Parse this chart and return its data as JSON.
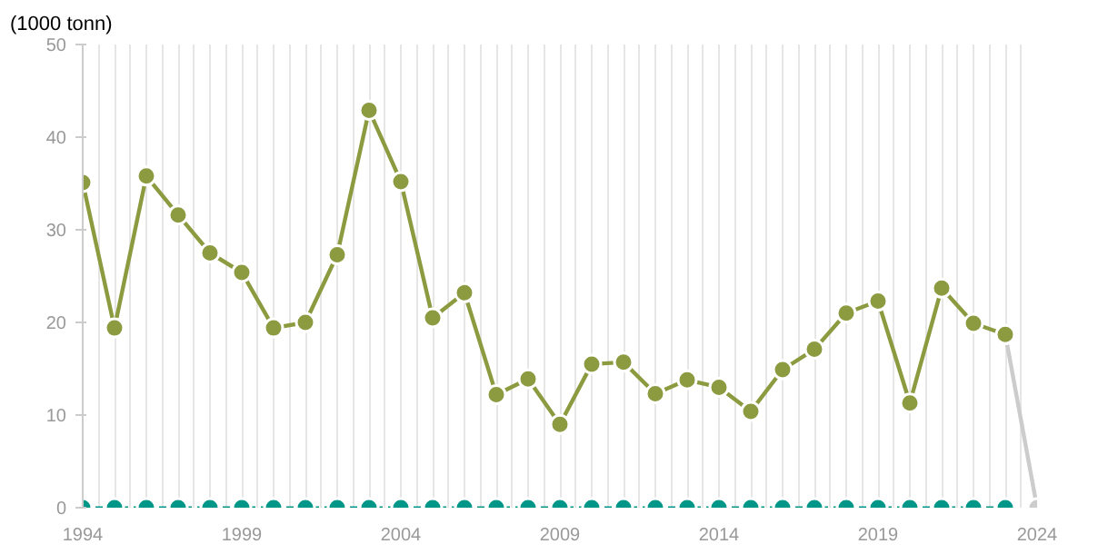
{
  "chart_data": {
    "type": "line",
    "ylabel": "(1000 tonn)",
    "x": [
      1994,
      1995,
      1996,
      1997,
      1998,
      1999,
      2000,
      2001,
      2002,
      2003,
      2004,
      2005,
      2006,
      2007,
      2008,
      2009,
      2010,
      2011,
      2012,
      2013,
      2014,
      2015,
      2016,
      2017,
      2018,
      2019,
      2020,
      2021,
      2022,
      2023
    ],
    "series": [
      {
        "color": "#cccccc",
        "x": [
          2023,
          2024
        ],
        "values": [
          18.7,
          0
        ]
      },
      {
        "color": "#8c9a40",
        "values": [
          35.1,
          19.4,
          35.8,
          31.6,
          27.5,
          25.4,
          19.4,
          20.0,
          27.3,
          42.9,
          35.2,
          20.5,
          23.2,
          12.2,
          13.9,
          9.0,
          15.5,
          15.7,
          12.3,
          13.8,
          13.0,
          10.4,
          14.9,
          17.1,
          21.0,
          22.3,
          11.3,
          23.7,
          19.9,
          18.7
        ]
      },
      {
        "color": "#009688",
        "line_style": "dashed",
        "values": [
          0,
          0,
          0,
          0,
          0,
          0,
          0,
          0,
          0,
          0,
          0,
          0,
          0,
          0,
          0,
          0,
          0,
          0,
          0,
          0,
          0,
          0,
          0,
          0,
          0,
          0,
          0,
          0,
          0,
          0
        ]
      }
    ],
    "xlim": [
      1994,
      2024
    ],
    "xticks": [
      1994,
      {
        "value": 1994.5,
        "label": null
      },
      {
        "value": 1995,
        "label": null
      },
      {
        "value": 1995.5,
        "label": null
      },
      {
        "value": 1996,
        "label": null
      },
      {
        "value": 1996.5,
        "label": null
      },
      {
        "value": 1997,
        "label": null
      },
      {
        "value": 1997.5,
        "label": null
      },
      {
        "value": 1998,
        "label": null
      },
      {
        "value": 1998.5,
        "label": null
      },
      1999,
      {
        "value": 1999.5,
        "label": null
      },
      {
        "value": 2000,
        "label": null
      },
      {
        "value": 2000.5,
        "label": null
      },
      {
        "value": 2001,
        "label": null
      },
      {
        "value": 2001.5,
        "label": null
      },
      {
        "value": 2002,
        "label": null
      },
      {
        "value": 2002.5,
        "label": null
      },
      {
        "value": 2003,
        "label": null
      },
      {
        "value": 2003.5,
        "label": null
      },
      2004,
      {
        "value": 2004.5,
        "label": null
      },
      {
        "value": 2005,
        "label": null
      },
      {
        "value": 2005.5,
        "label": null
      },
      {
        "value": 2006,
        "label": null
      },
      {
        "value": 2006.5,
        "label": null
      },
      {
        "value": 2007,
        "label": null
      },
      {
        "value": 2007.5,
        "label": null
      },
      {
        "value": 2008,
        "label": null
      },
      {
        "value": 2008.5,
        "label": null
      },
      2009,
      {
        "value": 2009.5,
        "label": null
      },
      {
        "value": 2010,
        "label": null
      },
      {
        "value": 2010.5,
        "label": null
      },
      {
        "value": 2011,
        "label": null
      },
      {
        "value": 2011.5,
        "label": null
      },
      {
        "value": 2012,
        "label": null
      },
      {
        "value": 2012.5,
        "label": null
      },
      {
        "value": 2013,
        "label": null
      },
      {
        "value": 2013.5,
        "label": null
      },
      2014,
      {
        "value": 2014.5,
        "label": null
      },
      {
        "value": 2015,
        "label": null
      },
      {
        "value": 2015.5,
        "label": null
      },
      {
        "value": 2016,
        "label": null
      },
      {
        "value": 2016.5,
        "label": null
      },
      {
        "value": 2017,
        "label": null
      },
      {
        "value": 2017.5,
        "label": null
      },
      {
        "value": 2018,
        "label": null
      },
      {
        "value": 2018.5,
        "label": null
      },
      2019,
      {
        "value": 2019.5,
        "label": null
      },
      {
        "value": 2020,
        "label": null
      },
      {
        "value": 2020.5,
        "label": null
      },
      {
        "value": 2021,
        "label": null
      },
      {
        "value": 2021.5,
        "label": null
      },
      {
        "value": 2022,
        "label": null
      },
      {
        "value": 2022.5,
        "label": null
      },
      {
        "value": 2023,
        "label": null
      },
      {
        "value": 2023.5,
        "label": null
      },
      2024
    ],
    "ylim": [
      0,
      50
    ],
    "yticks": [
      0,
      10,
      20,
      30,
      40,
      50
    ],
    "grid": "x",
    "marker": "circle",
    "line_style": "solid"
  }
}
